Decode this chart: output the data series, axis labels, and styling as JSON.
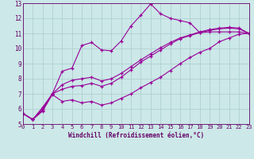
{
  "x_values": [
    0,
    1,
    2,
    3,
    4,
    5,
    6,
    7,
    8,
    9,
    10,
    11,
    12,
    13,
    14,
    15,
    16,
    17,
    18,
    19,
    20,
    21,
    22,
    23
  ],
  "line_spiky_y": [
    5.7,
    5.3,
    5.9,
    7.0,
    8.5,
    8.7,
    10.2,
    10.4,
    9.9,
    9.85,
    10.5,
    11.5,
    12.2,
    12.95,
    12.3,
    12.0,
    11.85,
    11.7,
    11.05,
    11.1,
    11.1,
    11.1,
    11.1,
    11.0
  ],
  "line_smooth1_y": [
    5.7,
    5.3,
    6.0,
    7.0,
    7.3,
    7.5,
    7.55,
    7.7,
    7.5,
    7.7,
    8.1,
    8.6,
    9.1,
    9.5,
    9.9,
    10.3,
    10.65,
    10.85,
    11.05,
    11.2,
    11.3,
    11.35,
    11.3,
    11.0
  ],
  "line_smooth2_y": [
    5.7,
    5.3,
    6.1,
    7.0,
    7.6,
    7.9,
    8.0,
    8.1,
    7.85,
    8.0,
    8.35,
    8.8,
    9.25,
    9.65,
    10.05,
    10.4,
    10.7,
    10.9,
    11.1,
    11.25,
    11.35,
    11.4,
    11.35,
    11.0
  ],
  "line_low_y": [
    5.7,
    5.3,
    5.85,
    6.95,
    6.5,
    6.6,
    6.4,
    6.5,
    6.25,
    6.4,
    6.7,
    7.0,
    7.4,
    7.75,
    8.1,
    8.55,
    9.0,
    9.4,
    9.75,
    10.0,
    10.45,
    10.7,
    10.95,
    11.0
  ],
  "line_color": "#990099",
  "bg_color": "#cce8e8",
  "grid_color": "#aacccc",
  "axis_color": "#660066",
  "text_color": "#660066",
  "xlabel": "Windchill (Refroidissement éolien,°C)",
  "ylim": [
    5,
    13
  ],
  "xlim": [
    0,
    23
  ],
  "yticks": [
    5,
    6,
    7,
    8,
    9,
    10,
    11,
    12,
    13
  ],
  "xticks": [
    0,
    1,
    2,
    3,
    4,
    5,
    6,
    7,
    8,
    9,
    10,
    11,
    12,
    13,
    14,
    15,
    16,
    17,
    18,
    19,
    20,
    21,
    22,
    23
  ]
}
